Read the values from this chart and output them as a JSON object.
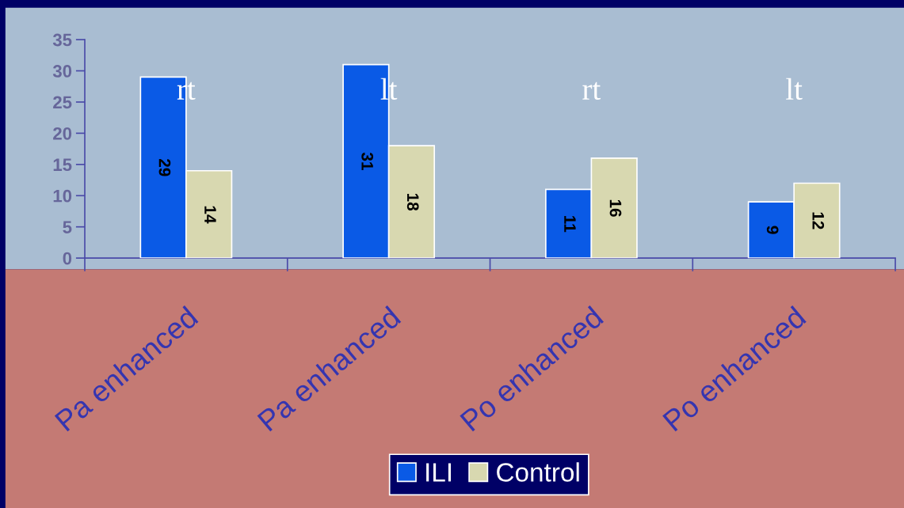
{
  "chart_data": {
    "type": "bar",
    "categories": [
      "Pa enhanced",
      "Pa enhanced",
      "Po enhanced",
      "Po enhanced"
    ],
    "series": [
      {
        "name": "ILI",
        "color": "#0a5ae6",
        "values": [
          29,
          31,
          11,
          9
        ]
      },
      {
        "name": "Control",
        "color": "#d8d8b0",
        "values": [
          14,
          18,
          16,
          12
        ]
      }
    ],
    "ylim": [
      0,
      35
    ],
    "yticks": [
      0,
      5,
      10,
      15,
      20,
      25,
      30,
      35
    ],
    "legend": "bottom",
    "data_labels": true,
    "annotations": [
      "rt",
      "lt",
      "rt",
      "lt"
    ]
  }
}
